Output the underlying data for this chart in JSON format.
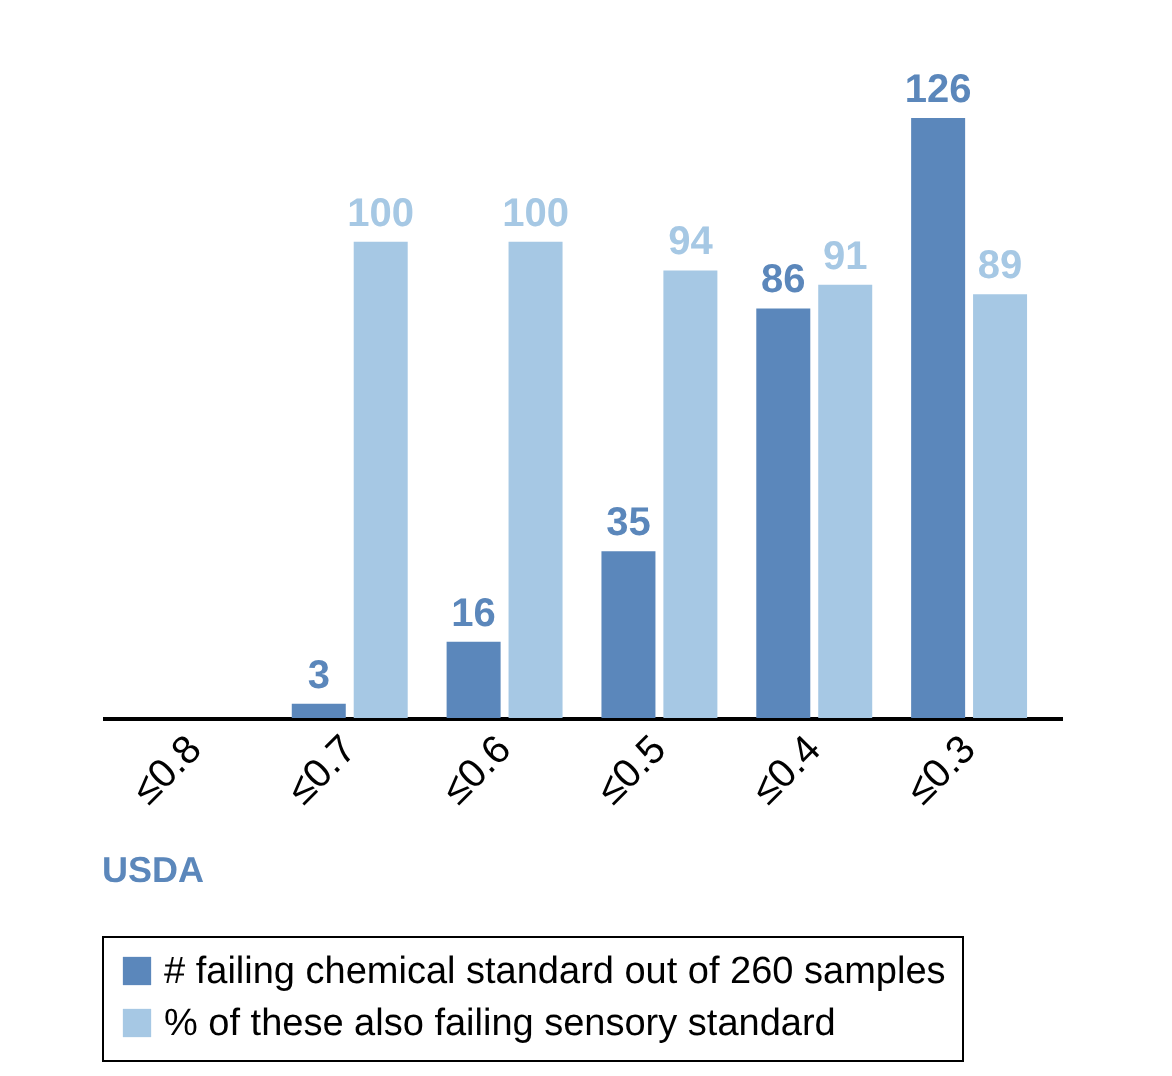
{
  "chart_data": {
    "type": "bar",
    "categories": [
      "≤0.8",
      "≤0.7",
      "≤0.6",
      "≤0.5",
      "≤0.4",
      "≤0.3"
    ],
    "series": [
      {
        "name": "# failing chemical standard out of 260 samples",
        "color": "#5b87bb",
        "values": [
          null,
          3,
          16,
          35,
          86,
          126
        ]
      },
      {
        "name": "% of these also failing sensory standard",
        "color": "#a6c8e4",
        "values": [
          null,
          100,
          100,
          94,
          91,
          89
        ]
      }
    ],
    "data_labels": true,
    "legend": "bottom",
    "grid": false,
    "annotations": [
      "USDA"
    ]
  }
}
